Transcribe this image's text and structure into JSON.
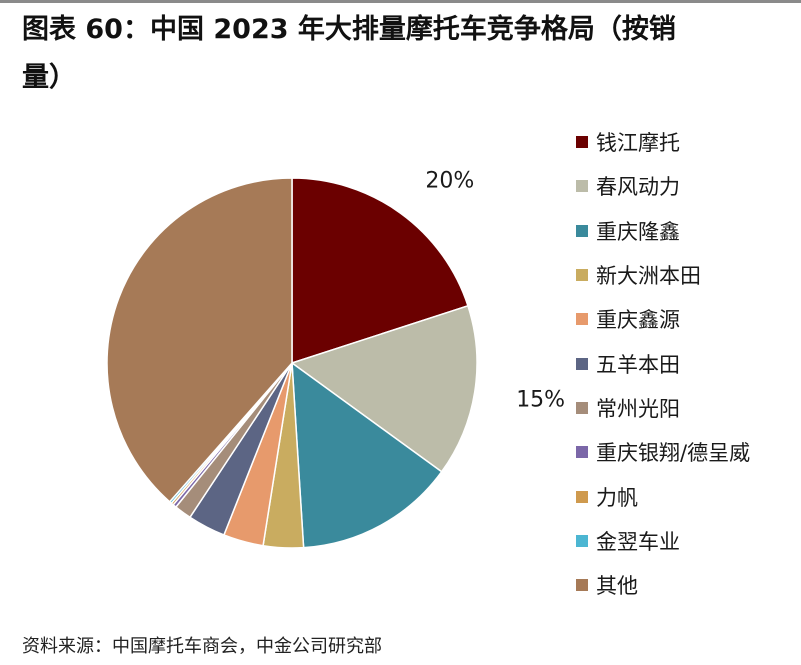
{
  "title": {
    "line1": "图表 60：中国 2023 年大排量摩托车竞争格局（按销",
    "line2": "量）"
  },
  "source": "资料来源：中国摩托车商会，中金公司研究部",
  "chart_data": {
    "type": "pie",
    "title": "图表 60：中国 2023 年大排量摩托车竞争格局（按销量）",
    "legend_position": "right",
    "start_angle_deg": 0,
    "direction": "clockwise",
    "slices": [
      {
        "name": "钱江摩托",
        "value": 20.0,
        "color": "#6b0000",
        "label": "20%"
      },
      {
        "name": "春风动力",
        "value": 15.0,
        "color": "#bcbca9",
        "label": "15%"
      },
      {
        "name": "重庆隆鑫",
        "value": 14.0,
        "color": "#3a8a9c",
        "label": ""
      },
      {
        "name": "新大洲本田",
        "value": 3.5,
        "color": "#c9ac60",
        "label": ""
      },
      {
        "name": "重庆鑫源",
        "value": 3.5,
        "color": "#e79a6c",
        "label": ""
      },
      {
        "name": "五羊本田",
        "value": 3.3,
        "color": "#5c6584",
        "label": ""
      },
      {
        "name": "常州光阳",
        "value": 1.5,
        "color": "#a58d7a",
        "label": ""
      },
      {
        "name": "重庆银翔/德呈威",
        "value": 0.3,
        "color": "#7b67a8",
        "label": ""
      },
      {
        "name": "力帆",
        "value": 0.2,
        "color": "#cf9a4e",
        "label": ""
      },
      {
        "name": "金翌车业",
        "value": 0.2,
        "color": "#4cb6d2",
        "label": ""
      },
      {
        "name": "其他",
        "value": 38.5,
        "color": "#a67a57",
        "label": ""
      }
    ]
  }
}
